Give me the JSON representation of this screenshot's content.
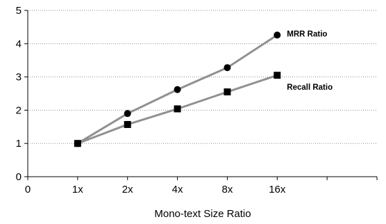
{
  "chart_data": {
    "type": "line",
    "title": "",
    "xlabel": "Mono-text Size Ratio",
    "ylabel": "",
    "x_tick_labels": [
      "0",
      "1x",
      "2x",
      "4x",
      "8x",
      "16x",
      ""
    ],
    "y_tick_labels": [
      "0",
      "1",
      "2",
      "3",
      "4",
      "5"
    ],
    "ylim": [
      0,
      5
    ],
    "grid": "horizontal dotted",
    "categories": [
      "1x",
      "2x",
      "4x",
      "8x",
      "16x"
    ],
    "series": [
      {
        "name": "MRR Ratio",
        "marker": "circle",
        "color": "#909090",
        "values": [
          1.0,
          1.9,
          2.62,
          3.28,
          4.26
        ]
      },
      {
        "name": "Recall Ratio",
        "marker": "square",
        "color": "#909090",
        "values": [
          1.0,
          1.57,
          2.04,
          2.55,
          3.05
        ]
      }
    ]
  }
}
